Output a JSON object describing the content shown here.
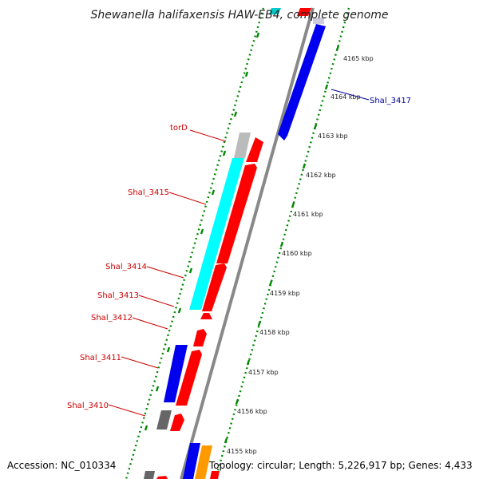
{
  "title": "Shewanella halifaxensis HAW-EB4, complete genome",
  "footer": {
    "accession": "Accession: NC_010334",
    "topology": "Topology: circular; Length: 5,226,917 bp; Genes: 4,433"
  },
  "kbp_ticks": [
    "4165 kbp",
    "4164 kbp",
    "4163 kbp",
    "4162 kbp",
    "4161 kbp",
    "4160 kbp",
    "4159 kbp",
    "4158 kbp",
    "4157 kbp",
    "4156 kbp",
    "4155 kbp"
  ],
  "gene_labels": [
    {
      "text": "torD",
      "color": "#cc0000"
    },
    {
      "text": "Shal_3415",
      "color": "#cc0000"
    },
    {
      "text": "Shal_3414",
      "color": "#cc0000"
    },
    {
      "text": "Shal_3413",
      "color": "#cc0000"
    },
    {
      "text": "Shal_3412",
      "color": "#cc0000"
    },
    {
      "text": "Shal_3411",
      "color": "#cc0000"
    },
    {
      "text": "Shal_3410",
      "color": "#cc0000"
    },
    {
      "text": "Shal_3417",
      "color": "#000099"
    }
  ],
  "colors": {
    "forward_gene": "#ff0000",
    "reverse_gene": "#0000ee",
    "cds_cyan": "#00ffff",
    "gray_gene": "#666666",
    "light_gray_gene": "#bbbbbb",
    "orange_gene": "#ff9900",
    "backbone": "#888888",
    "dotted_ring": "#008800"
  }
}
